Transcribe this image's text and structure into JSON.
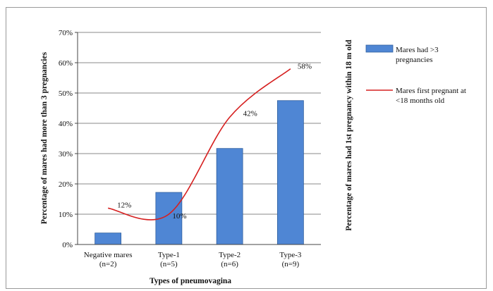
{
  "chart_data": {
    "type": "bar",
    "categories": [
      [
        "Negative mares",
        "(n=2)"
      ],
      [
        "Type-1",
        "(n=5)"
      ],
      [
        "Type-2",
        "(n=6)"
      ],
      [
        "Type-3",
        "(n=9)"
      ]
    ],
    "xlabel": "Types of pneumovagina",
    "ylabel_left": "Percentage of mares had more than 3 pregnancies",
    "ylabel_right": "Percentage of mares had 1st pregnancy within 18 m old",
    "ylim": [
      0,
      70
    ],
    "yticks": [
      "0%",
      "10%",
      "20%",
      "30%",
      "40%",
      "50%",
      "60%",
      "70%"
    ],
    "grid": true,
    "legend_position": "right",
    "series": [
      {
        "name": [
          "Mares had  >3",
          "pregnancies"
        ],
        "kind": "bar",
        "color": "#4f86d4",
        "values": [
          3.8,
          17.2,
          31.7,
          47.5
        ]
      },
      {
        "name": [
          "Mares first pregnant at",
          "<18 months old"
        ],
        "kind": "line",
        "color": "#d62020",
        "values": [
          12,
          10,
          42,
          58
        ],
        "data_labels": [
          "12%",
          "10%",
          "42%",
          "58%"
        ]
      }
    ]
  }
}
